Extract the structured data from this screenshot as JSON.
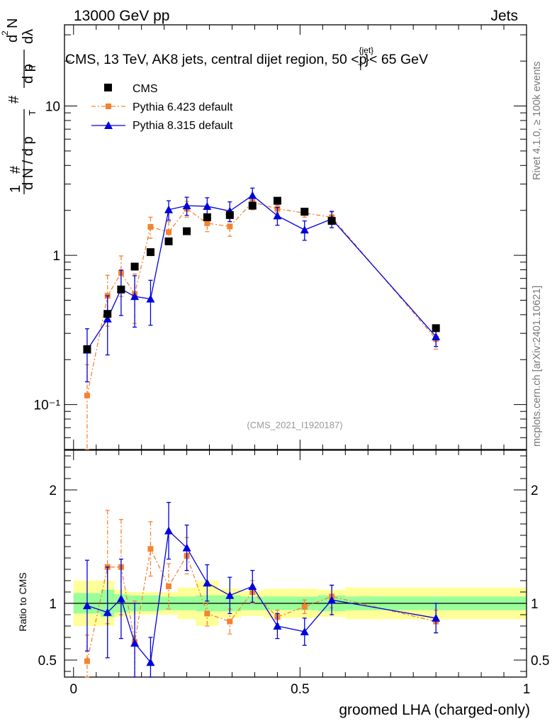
{
  "header": {
    "energy_label": "13000 GeV pp",
    "category": "Jets",
    "side_rivet": "Rivet 4.1.0, ≥ 100k events",
    "side_site": "mcplots.cern.ch [arXiv:2401.10621]"
  },
  "colors": {
    "cms": "#000000",
    "py6": "#f58231",
    "py8": "#0000dd",
    "band_inner": "#99ff99",
    "band_outer": "#ffff99"
  },
  "chart_data": [
    {
      "type": "scatter",
      "title": "CMS, 13 TeV, AK8 jets, central dijet region, 50 <p",
      "title_sub": "T",
      "title_sup": "{jet}",
      "title_end": "}< 65 GeV",
      "ylabel_parts": [
        "1",
        "#",
        "d N / d p",
        "T",
        "#",
        "d",
        "2",
        "N",
        "d p",
        "T",
        "dλ"
      ],
      "analysis_id": "(CMS_2021_I1920187)",
      "yscale": "log",
      "ylim": [
        0.05,
        35
      ],
      "xlim": [
        -0.02,
        1.0
      ],
      "y_ticklabels": [
        "10⁻¹",
        "1",
        "10"
      ],
      "legend": [
        "CMS",
        "Pythia 6.423 default",
        "Pythia 8.315 default"
      ],
      "legend_position": "top-left",
      "series": [
        {
          "name": "CMS",
          "x": [
            0.03,
            0.075,
            0.105,
            0.135,
            0.17,
            0.21,
            0.25,
            0.295,
            0.345,
            0.395,
            0.45,
            0.51,
            0.57,
            0.8
          ],
          "y": [
            0.235,
            0.405,
            0.59,
            0.84,
            1.05,
            1.24,
            1.45,
            1.8,
            1.86,
            2.15,
            2.32,
            1.96,
            1.7,
            0.325
          ],
          "yerr": [
            0.01,
            0.01,
            0.01,
            0.01,
            0.01,
            0.01,
            0.01,
            0.01,
            0.02,
            0.02,
            0.02,
            0.02,
            0.02,
            0.01
          ]
        },
        {
          "name": "Pythia 6.423 default",
          "x": [
            0.03,
            0.075,
            0.105,
            0.135,
            0.17,
            0.21,
            0.25,
            0.295,
            0.345,
            0.395,
            0.45,
            0.51,
            0.57,
            0.8
          ],
          "y": [
            0.115,
            0.535,
            0.76,
            0.55,
            1.55,
            1.43,
            2.05,
            1.64,
            1.56,
            2.27,
            2.05,
            1.92,
            1.8,
            0.275
          ],
          "yerr": [
            0.07,
            0.2,
            0.23,
            0.2,
            0.25,
            0.25,
            0.25,
            0.2,
            0.22,
            0.25,
            0.12,
            0.12,
            0.15,
            0.04
          ]
        },
        {
          "name": "Pythia 8.315 default",
          "x": [
            0.03,
            0.075,
            0.105,
            0.135,
            0.17,
            0.21,
            0.25,
            0.295,
            0.345,
            0.395,
            0.45,
            0.51,
            0.57,
            0.8
          ],
          "y": [
            0.232,
            0.375,
            0.595,
            0.53,
            0.51,
            2.02,
            2.15,
            2.13,
            1.98,
            2.52,
            1.84,
            1.48,
            1.75,
            0.285
          ],
          "yerr": [
            0.09,
            0.16,
            0.2,
            0.2,
            0.17,
            0.3,
            0.3,
            0.3,
            0.3,
            0.3,
            0.25,
            0.22,
            0.22,
            0.04
          ]
        }
      ]
    },
    {
      "type": "scatter",
      "ylabel": "Ratio to CMS",
      "xlabel": "groomed LHA (charged-only)",
      "ylim": [
        0.35,
        2.35
      ],
      "xlim": [
        -0.02,
        1.0
      ],
      "x_ticklabels": [
        "0",
        "0.5",
        "1"
      ],
      "y_ticklabels": [
        "0.5",
        "1",
        "2"
      ],
      "bands": {
        "edges": [
          0.0,
          0.06,
          0.09,
          0.12,
          0.15,
          0.19,
          0.23,
          0.27,
          0.32,
          0.37,
          0.42,
          0.48,
          0.54,
          0.6,
          1.0
        ],
        "inner": [
          0.09,
          0.12,
          0.08,
          0.07,
          0.07,
          0.06,
          0.06,
          0.07,
          0.07,
          0.06,
          0.06,
          0.06,
          0.07,
          0.06
        ],
        "outer": [
          0.2,
          0.2,
          0.12,
          0.1,
          0.1,
          0.1,
          0.14,
          0.2,
          0.13,
          0.11,
          0.13,
          0.13,
          0.12,
          0.14
        ]
      },
      "series": [
        {
          "name": "Pythia 6.423 default",
          "x": [
            0.03,
            0.075,
            0.105,
            0.135,
            0.17,
            0.21,
            0.25,
            0.295,
            0.345,
            0.395,
            0.45,
            0.51,
            0.57,
            0.8
          ],
          "y": [
            0.49,
            1.32,
            1.32,
            0.66,
            1.48,
            1.15,
            1.42,
            0.91,
            0.84,
            1.1,
            0.88,
            0.97,
            1.06,
            0.84
          ],
          "yerr": [
            0.23,
            0.5,
            0.42,
            0.36,
            0.24,
            0.2,
            0.16,
            0.11,
            0.11,
            0.1,
            0.06,
            0.06,
            0.1,
            0.1
          ]
        },
        {
          "name": "Pythia 8.315 default",
          "x": [
            0.03,
            0.075,
            0.105,
            0.135,
            0.17,
            0.21,
            0.25,
            0.295,
            0.345,
            0.395,
            0.45,
            0.51,
            0.57,
            0.8
          ],
          "y": [
            0.98,
            0.92,
            1.04,
            0.65,
            0.48,
            1.64,
            1.49,
            1.18,
            1.07,
            1.15,
            0.8,
            0.75,
            1.03,
            0.87
          ],
          "yerr": [
            0.4,
            0.4,
            0.35,
            0.35,
            0.22,
            0.25,
            0.2,
            0.16,
            0.16,
            0.14,
            0.11,
            0.12,
            0.13,
            0.13
          ]
        }
      ]
    }
  ]
}
